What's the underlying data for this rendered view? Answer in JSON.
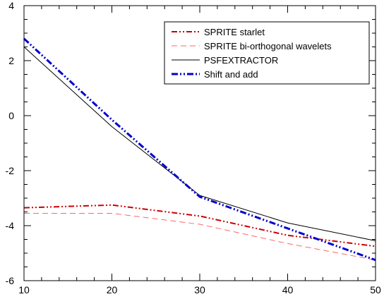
{
  "chart_data": {
    "type": "line",
    "title": "",
    "xlabel": "",
    "ylabel": "",
    "xlim": [
      10,
      50
    ],
    "ylim": [
      -6,
      4
    ],
    "x_ticks": [
      10,
      20,
      30,
      40,
      50
    ],
    "x_tick_labels": [
      "10",
      "20",
      "30",
      "40",
      "50"
    ],
    "y_ticks": [
      -6,
      -4,
      -2,
      0,
      2,
      4
    ],
    "y_tick_labels": [
      "-6",
      "-4",
      "-2",
      "0",
      "2",
      "4"
    ],
    "grid": false,
    "legend_position": "top-right",
    "series": [
      {
        "name": "SPRITE starlet",
        "color": "#cc0000",
        "style": "dash-dot-dot",
        "points": [
          [
            10,
            -3.35
          ],
          [
            20,
            -3.25
          ],
          [
            30,
            -3.65
          ],
          [
            40,
            -4.35
          ],
          [
            50,
            -4.75
          ]
        ]
      },
      {
        "name": "SPRITE bi-orthogonal wavelets",
        "color": "#ff6666",
        "style": "dashed",
        "points": [
          [
            10,
            -3.55
          ],
          [
            20,
            -3.55
          ],
          [
            30,
            -3.95
          ],
          [
            40,
            -4.65
          ],
          [
            50,
            -5.25
          ]
        ]
      },
      {
        "name": "PSFEXTRACTOR",
        "color": "#000000",
        "style": "solid",
        "points": [
          [
            10,
            2.5
          ],
          [
            20,
            -0.4
          ],
          [
            30,
            -2.9
          ],
          [
            40,
            -3.9
          ],
          [
            50,
            -4.55
          ]
        ]
      },
      {
        "name": "Shift and add",
        "color": "#0000cc",
        "style": "dash-dot-dot-thick",
        "points": [
          [
            10,
            2.8
          ],
          [
            20,
            -0.15
          ],
          [
            30,
            -2.95
          ],
          [
            40,
            -4.1
          ],
          [
            50,
            -5.25
          ]
        ]
      }
    ]
  }
}
